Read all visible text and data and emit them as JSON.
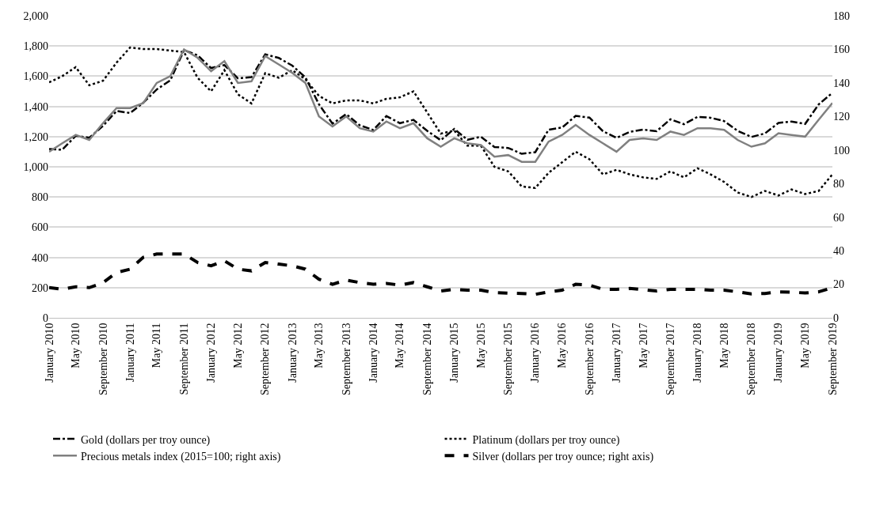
{
  "chart_data": {
    "type": "line",
    "x": [
      "2010-01",
      "2010-03",
      "2010-05",
      "2010-07",
      "2010-09",
      "2010-11",
      "2011-01",
      "2011-03",
      "2011-05",
      "2011-07",
      "2011-09",
      "2011-11",
      "2012-01",
      "2012-03",
      "2012-05",
      "2012-07",
      "2012-09",
      "2012-11",
      "2013-01",
      "2013-03",
      "2013-05",
      "2013-07",
      "2013-09",
      "2013-11",
      "2014-01",
      "2014-03",
      "2014-05",
      "2014-07",
      "2014-09",
      "2014-11",
      "2015-01",
      "2015-03",
      "2015-05",
      "2015-07",
      "2015-09",
      "2015-11",
      "2016-01",
      "2016-03",
      "2016-05",
      "2016-07",
      "2016-09",
      "2016-11",
      "2017-01",
      "2017-03",
      "2017-05",
      "2017-07",
      "2017-09",
      "2017-11",
      "2018-01",
      "2018-03",
      "2018-05",
      "2018-07",
      "2018-09",
      "2018-11",
      "2019-01",
      "2019-03",
      "2019-05",
      "2019-07",
      "2019-09"
    ],
    "series": [
      {
        "name": "Gold (dollars per troy ounce)",
        "color": "#000000",
        "line_style": "dashdot",
        "values": [
          1118,
          1113,
          1205,
          1193,
          1271,
          1370,
          1356,
          1424,
          1512,
          1573,
          1772,
          1739,
          1654,
          1674,
          1586,
          1594,
          1745,
          1721,
          1670,
          1593,
          1414,
          1286,
          1349,
          1275,
          1244,
          1336,
          1289,
          1311,
          1238,
          1176,
          1251,
          1179,
          1199,
          1131,
          1125,
          1086,
          1097,
          1246,
          1260,
          1337,
          1326,
          1236,
          1192,
          1231,
          1246,
          1236,
          1315,
          1282,
          1331,
          1325,
          1303,
          1238,
          1198,
          1221,
          1291,
          1300,
          1284,
          1413,
          1490
        ]
      },
      {
        "name": "Platinum (dollars per troy ounce)",
        "color": "#000000",
        "line_style": "dotted",
        "values": [
          1560,
          1600,
          1660,
          1540,
          1570,
          1690,
          1790,
          1780,
          1780,
          1770,
          1760,
          1590,
          1500,
          1640,
          1480,
          1420,
          1620,
          1590,
          1640,
          1580,
          1470,
          1420,
          1440,
          1440,
          1420,
          1450,
          1460,
          1500,
          1360,
          1220,
          1240,
          1140,
          1140,
          1000,
          970,
          870,
          860,
          960,
          1030,
          1100,
          1050,
          950,
          980,
          950,
          930,
          920,
          970,
          930,
          990,
          950,
          900,
          830,
          800,
          840,
          810,
          850,
          820,
          840,
          950
        ]
      },
      {
        "name": "Precious metals index (2015=100; right axis)",
        "color": "#808080",
        "line_style": "solid",
        "axis": "y2",
        "values": [
          99,
          104,
          109,
          106,
          116,
          125,
          125,
          128,
          140,
          144,
          160,
          155,
          147,
          153,
          140,
          141,
          156,
          151,
          146,
          140,
          120,
          114,
          120,
          113,
          111,
          117,
          113,
          116,
          107,
          102,
          107,
          104,
          103,
          96,
          97,
          93,
          93,
          105,
          109,
          115,
          109,
          104,
          99,
          106,
          107,
          106,
          111,
          109,
          113,
          113,
          112,
          106,
          102,
          104,
          110,
          109,
          108,
          118,
          128
        ]
      },
      {
        "name": "Silver (dollars per troy ounce; right axis)",
        "color": "#000000",
        "line_style": "dashed",
        "axis": "y2",
        "values": [
          18,
          17,
          18.5,
          18,
          21,
          27,
          29,
          36,
          38,
          38,
          38,
          33,
          31,
          34,
          29,
          28,
          33,
          32,
          31,
          29,
          23,
          20,
          22.5,
          21,
          20,
          20.5,
          19.5,
          21,
          18.5,
          16,
          17,
          16.5,
          16.5,
          15,
          14.7,
          14.5,
          14,
          15.5,
          16.5,
          20,
          19.5,
          17,
          17,
          17.5,
          16.8,
          16,
          17,
          17,
          17,
          16.5,
          16.5,
          15.5,
          14.3,
          14.5,
          15.5,
          15.3,
          14.8,
          15.5,
          18
        ]
      }
    ],
    "xlim": [
      "2010-01",
      "2019-09"
    ],
    "xticks": [
      {
        "value": "2010-01",
        "label": "January 2010"
      },
      {
        "value": "2010-05",
        "label": "May 2010"
      },
      {
        "value": "2010-09",
        "label": "September 2010"
      },
      {
        "value": "2011-01",
        "label": "January 2011"
      },
      {
        "value": "2011-05",
        "label": "May 2011"
      },
      {
        "value": "2011-09",
        "label": "September 2011"
      },
      {
        "value": "2012-01",
        "label": "January 2012"
      },
      {
        "value": "2012-05",
        "label": "May 2012"
      },
      {
        "value": "2012-09",
        "label": "September 2012"
      },
      {
        "value": "2013-01",
        "label": "January 2013"
      },
      {
        "value": "2013-05",
        "label": "May 2013"
      },
      {
        "value": "2013-09",
        "label": "September 2013"
      },
      {
        "value": "2014-01",
        "label": "January 2014"
      },
      {
        "value": "2014-05",
        "label": "May 2014"
      },
      {
        "value": "2014-09",
        "label": "September 2014"
      },
      {
        "value": "2015-01",
        "label": "January 2015"
      },
      {
        "value": "2015-05",
        "label": "May 2015"
      },
      {
        "value": "2015-09",
        "label": "September 2015"
      },
      {
        "value": "2016-01",
        "label": "January 2016"
      },
      {
        "value": "2016-05",
        "label": "May 2016"
      },
      {
        "value": "2016-09",
        "label": "September 2016"
      },
      {
        "value": "2017-01",
        "label": "January 2017"
      },
      {
        "value": "2017-05",
        "label": "May 2017"
      },
      {
        "value": "2017-09",
        "label": "September 2017"
      },
      {
        "value": "2018-01",
        "label": "January 2018"
      },
      {
        "value": "2018-05",
        "label": "May 2018"
      },
      {
        "value": "2018-09",
        "label": "September 2018"
      },
      {
        "value": "2019-01",
        "label": "January 2019"
      },
      {
        "value": "2019-05",
        "label": "May 2019"
      },
      {
        "value": "2019-09",
        "label": "September 2019"
      }
    ],
    "ylim": [
      0,
      2000
    ],
    "yticks": [
      0,
      200,
      400,
      600,
      800,
      {
        "value": 1000,
        "label": "1,000"
      },
      {
        "value": 1200,
        "label": "1,200"
      },
      {
        "value": 1400,
        "label": "1,400"
      },
      {
        "value": 1600,
        "label": "1,600"
      },
      {
        "value": 1800,
        "label": "1,800"
      },
      {
        "value": 2000,
        "label": "2,000"
      }
    ],
    "y2lim": [
      0,
      180
    ],
    "y2ticks": [
      0,
      20,
      40,
      60,
      80,
      100,
      120,
      140,
      160,
      180
    ],
    "grid": "y",
    "legend": "bottom",
    "marker": "none"
  }
}
